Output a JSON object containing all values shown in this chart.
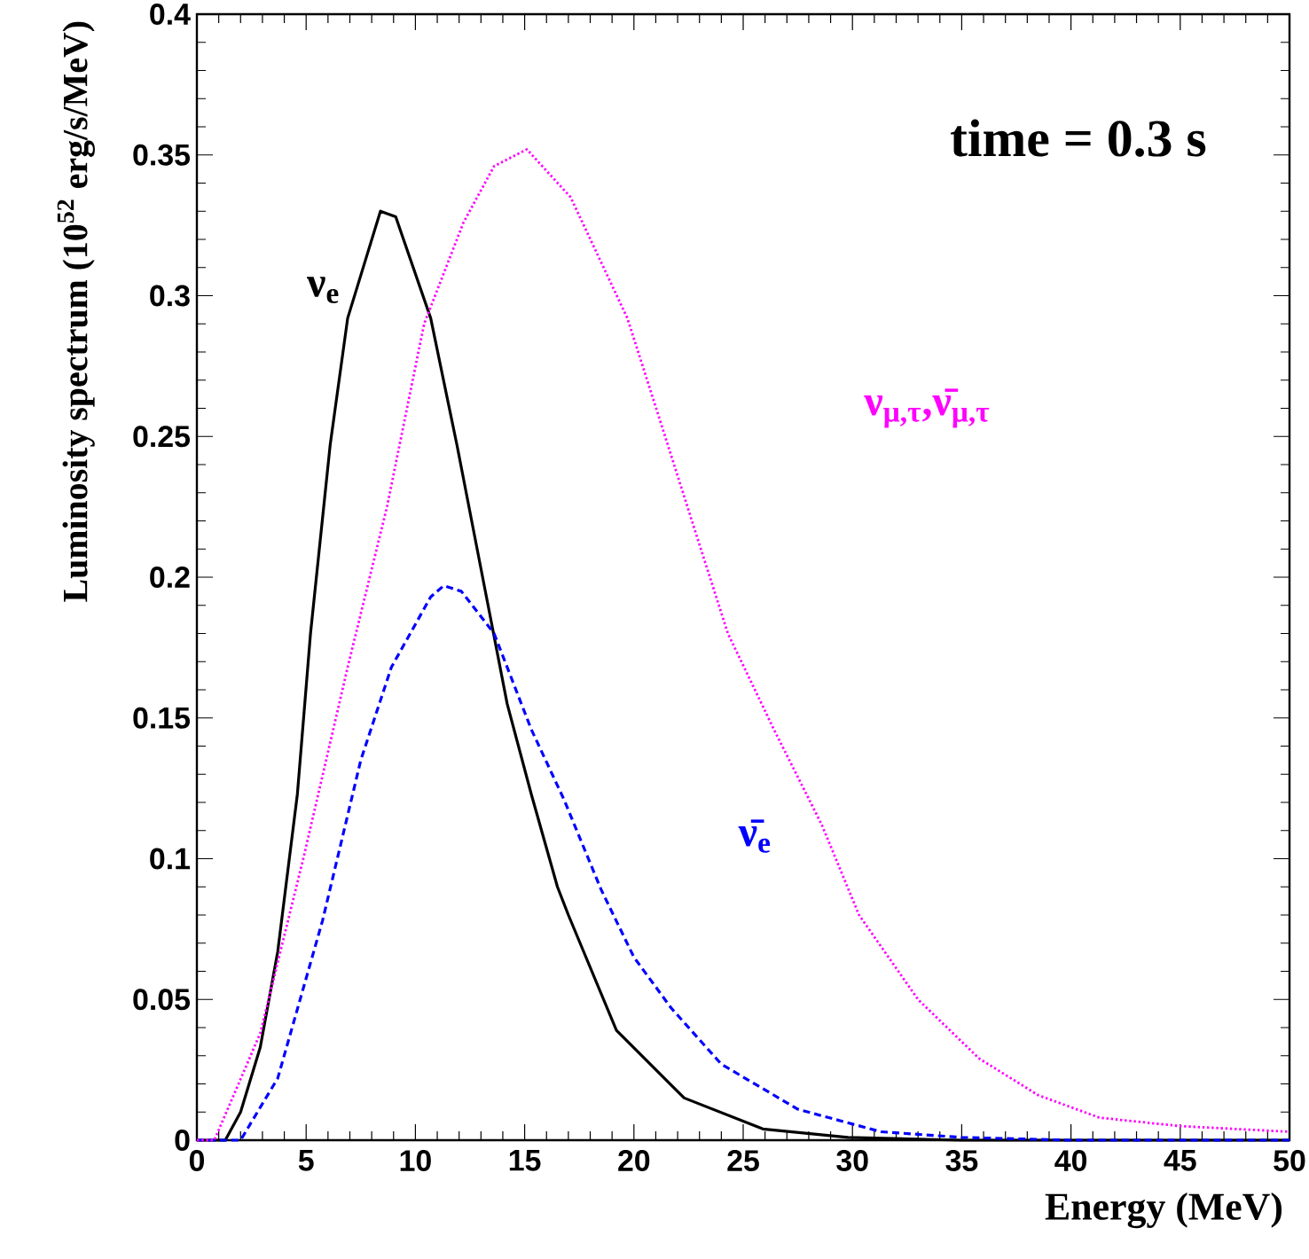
{
  "chart_data": {
    "type": "line",
    "xlabel": "Energy (MeV)",
    "ylabel": "Luminosity spectrum (10$^{52}$ erg/s/MeV)",
    "annotations": [
      "time = 0.3 s"
    ],
    "xlim": [
      0,
      50
    ],
    "ylim": [
      0,
      0.4
    ],
    "xticks": [
      0,
      5,
      10,
      15,
      20,
      25,
      30,
      35,
      40,
      45,
      50
    ],
    "yticks": [
      0,
      0.05,
      0.1,
      0.15,
      0.2,
      0.25,
      0.3,
      0.35,
      0.4
    ],
    "grid": false,
    "marker": "none",
    "series": [
      {
        "name": "ν$_{e}$",
        "color": "#000000",
        "line_style": "solid",
        "x": [
          0,
          1.3,
          2.0,
          2.9,
          3.7,
          4.6,
          5.2,
          6.1,
          6.9,
          8.4,
          9.1,
          10.7,
          11.9,
          13.3,
          14.2,
          15.3,
          16.5,
          17.0,
          19.2,
          22.3,
          25.9,
          29.8,
          35,
          40,
          50
        ],
        "values": [
          0,
          0,
          0.01,
          0.033,
          0.067,
          0.123,
          0.18,
          0.247,
          0.292,
          0.33,
          0.328,
          0.292,
          0.247,
          0.191,
          0.155,
          0.123,
          0.09,
          0.08,
          0.039,
          0.015,
          0.004,
          0.001,
          0,
          0,
          0
        ]
      },
      {
        "name": "ν̄$_{e}$",
        "color": "#0000ff",
        "line_style": "dashed",
        "x": [
          0,
          2.0,
          3.7,
          5.75,
          7.5,
          8.9,
          10.7,
          11.3,
          12.1,
          13.6,
          15.3,
          16.8,
          18.5,
          20.0,
          21.7,
          24.0,
          27.5,
          31.3,
          35,
          40,
          50
        ],
        "values": [
          0,
          0,
          0.022,
          0.078,
          0.135,
          0.168,
          0.193,
          0.197,
          0.195,
          0.18,
          0.146,
          0.121,
          0.089,
          0.065,
          0.047,
          0.027,
          0.011,
          0.003,
          0.001,
          0,
          0
        ]
      },
      {
        "name": "ν$_{μ,τ}$,ν̄$_{μ,τ}$",
        "color": "#ff00ff",
        "line_style": "dotted",
        "x": [
          0,
          0.8,
          2.9,
          4.9,
          6.9,
          8.7,
          10.4,
          12.2,
          13.6,
          15.1,
          17.1,
          19.7,
          21.1,
          22.9,
          24.3,
          26.4,
          28.6,
          30.3,
          33.0,
          35.8,
          38.5,
          41.3,
          45,
          50
        ],
        "values": [
          0,
          0,
          0.038,
          0.101,
          0.168,
          0.225,
          0.29,
          0.326,
          0.346,
          0.352,
          0.335,
          0.292,
          0.258,
          0.214,
          0.18,
          0.146,
          0.112,
          0.08,
          0.05,
          0.029,
          0.016,
          0.008,
          0.005,
          0.003
        ]
      }
    ]
  }
}
